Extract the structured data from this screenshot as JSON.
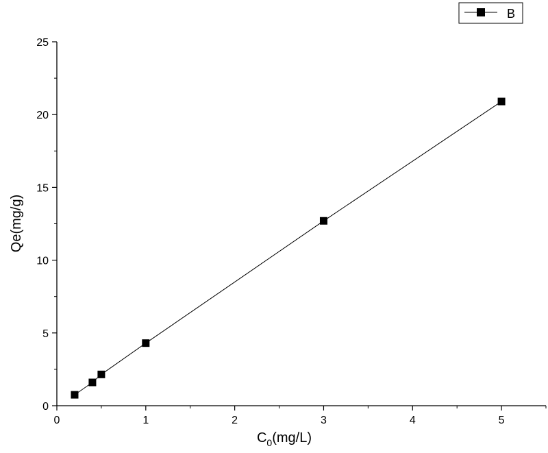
{
  "chart_data": {
    "type": "line",
    "title": "",
    "xlabel": {
      "main": "C",
      "sub": "0",
      "rest": "(mg/L)"
    },
    "ylabel": "Qe(mg/g)",
    "xlim": [
      0,
      5.5
    ],
    "ylim": [
      0,
      25
    ],
    "xticks": [
      0,
      1,
      2,
      3,
      4,
      5
    ],
    "yticks": [
      0,
      5,
      10,
      15,
      20,
      25
    ],
    "xtick_labels": [
      "0",
      "1",
      "2",
      "3",
      "4",
      "5"
    ],
    "ytick_labels": [
      "0",
      "5",
      "10",
      "15",
      "20",
      "25"
    ],
    "grid": false,
    "legend_position": "top-right",
    "marker": "square",
    "series": [
      {
        "name": "B",
        "color": "#000000",
        "x": [
          0.2,
          0.4,
          0.5,
          1.0,
          3.0,
          5.0
        ],
        "y": [
          0.75,
          1.6,
          2.15,
          4.3,
          12.7,
          20.9
        ]
      }
    ]
  }
}
